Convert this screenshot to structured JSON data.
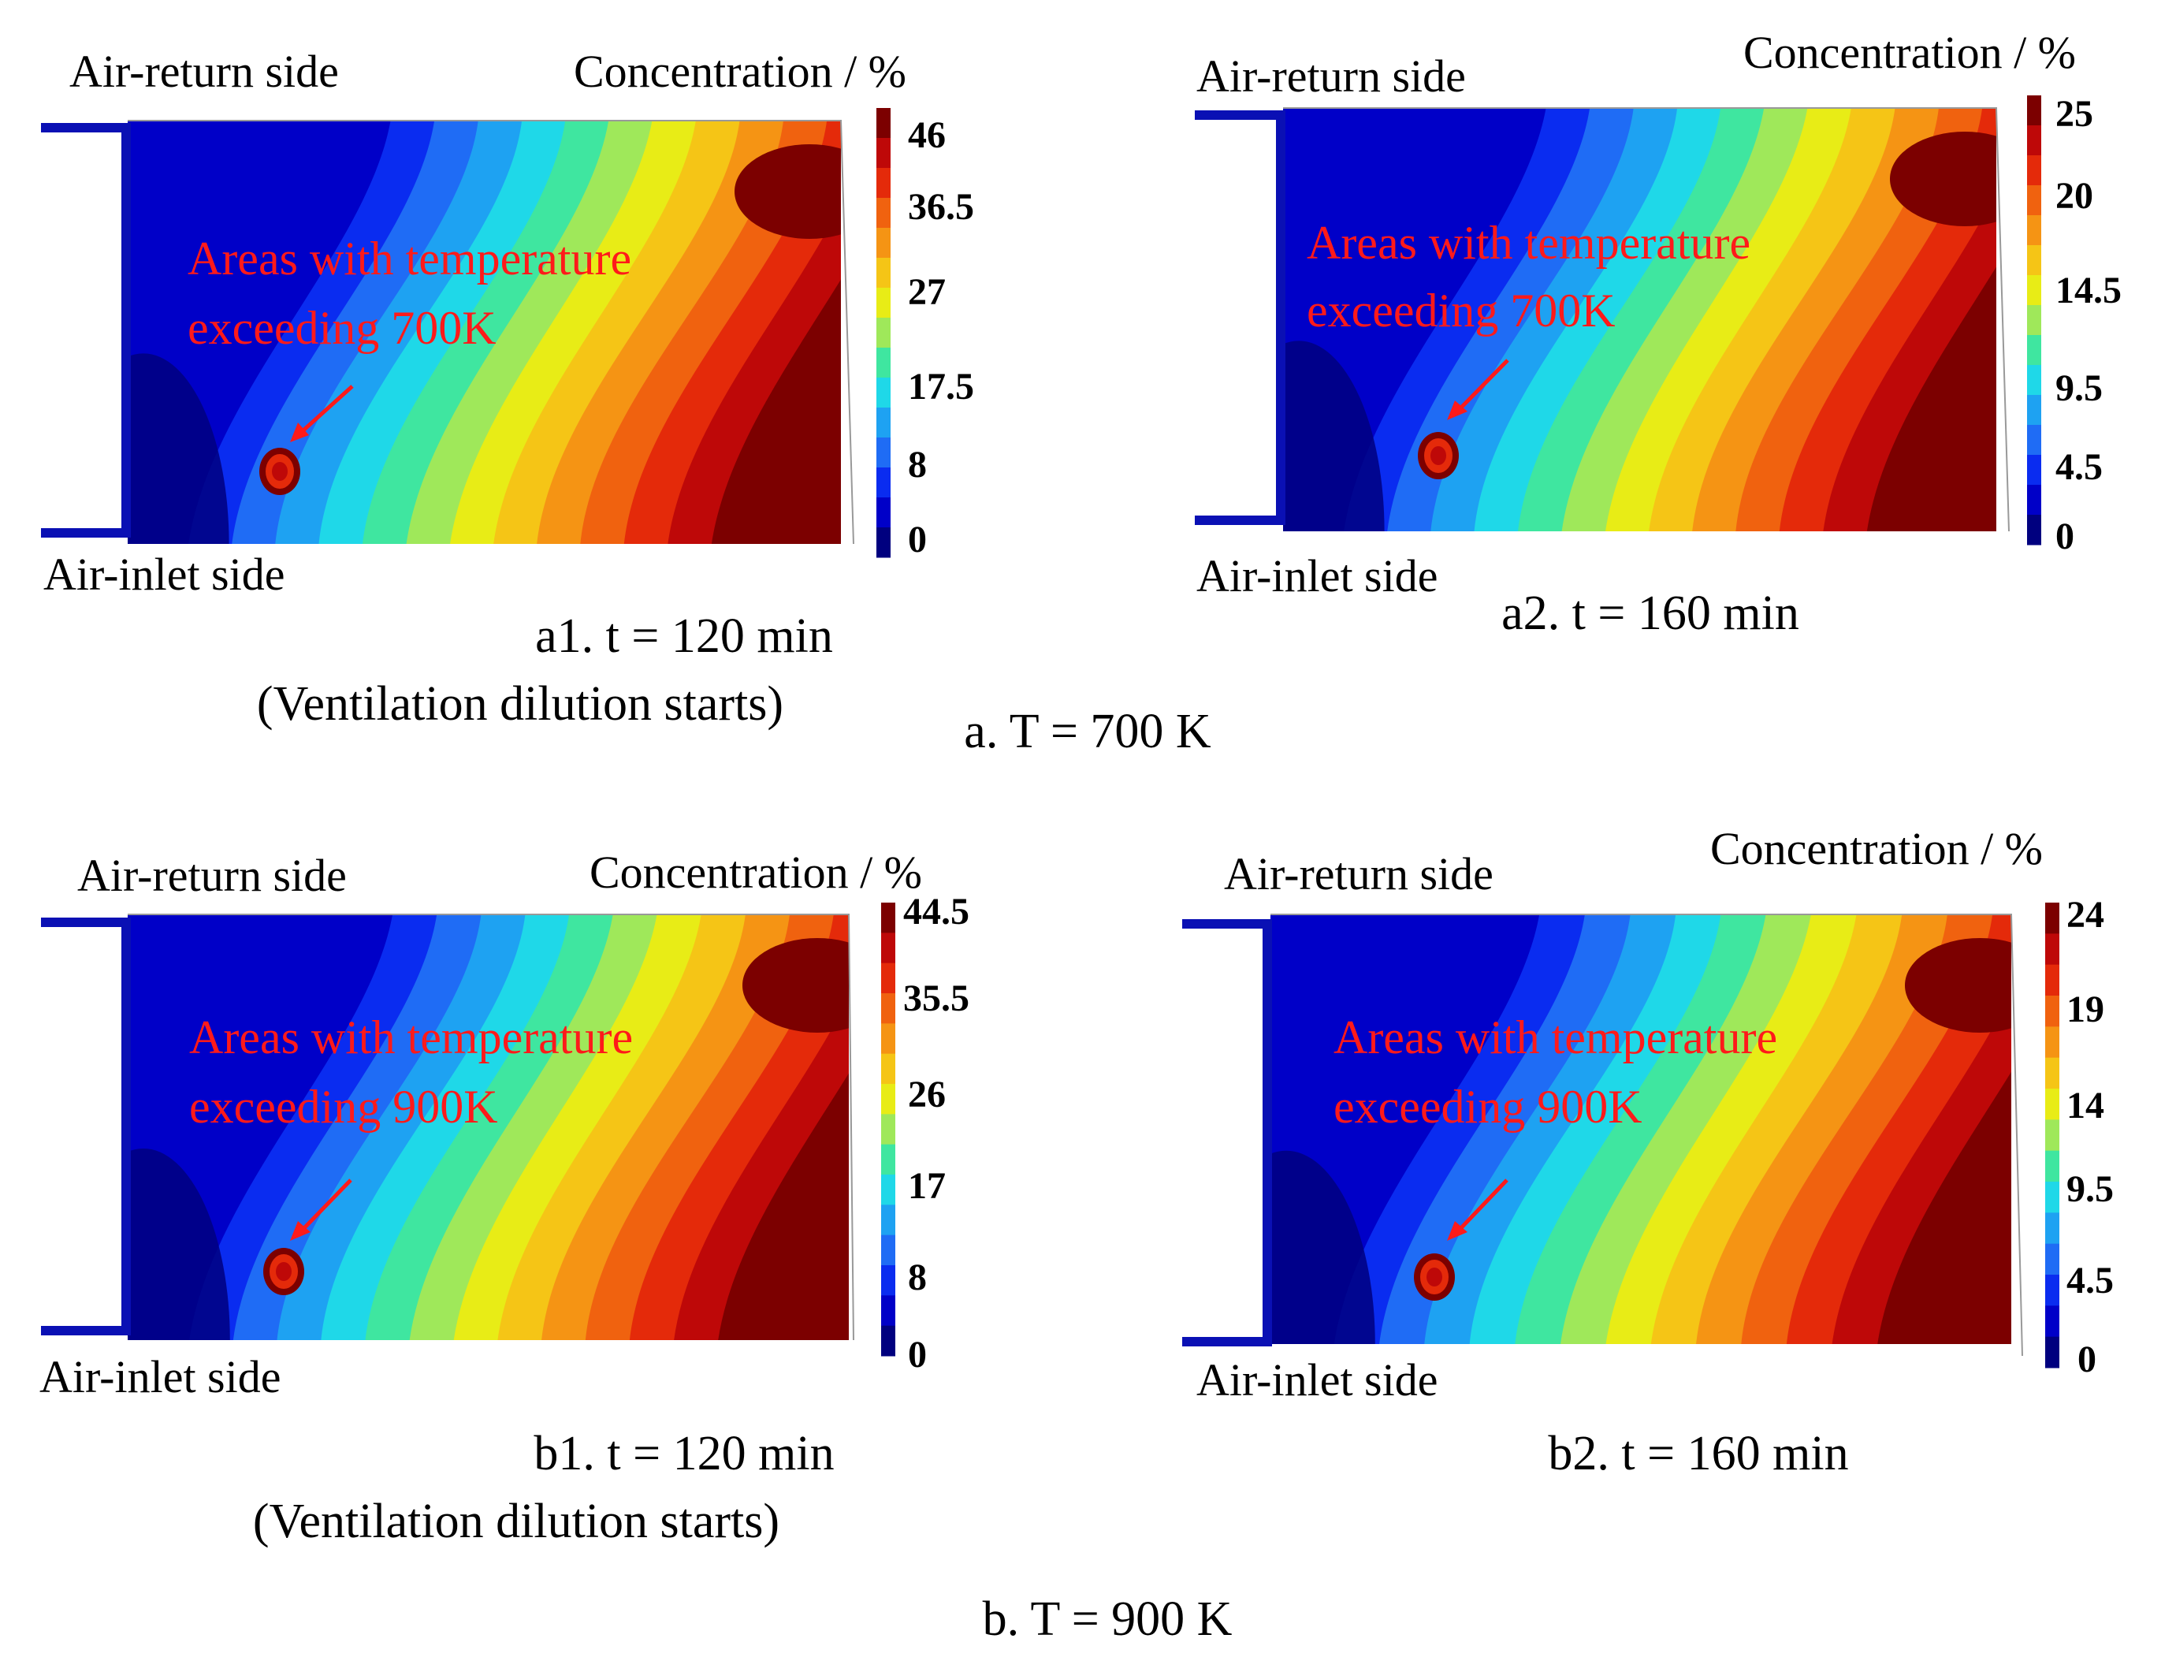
{
  "figure": {
    "group_a_caption": "a. T = 700 K",
    "group_b_caption": "b. T = 900 K"
  },
  "panels": [
    {
      "id": "a1",
      "caption_line1": "a1. t = 120 min",
      "caption_line2": "(Ventilation dilution starts)",
      "return_label": "Air-return side",
      "inlet_label": "Air-inlet side",
      "legend_title": "Concentration / %",
      "annotation_line1": "Areas with temperature",
      "annotation_line2": "exceeding 700K",
      "legend_ticks": [
        "46",
        "36.5",
        "27",
        "17.5",
        "8",
        "0"
      ]
    },
    {
      "id": "a2",
      "caption_line1": "a2. t = 160 min",
      "caption_line2": "",
      "return_label": "Air-return side",
      "inlet_label": "Air-inlet side",
      "legend_title": "Concentration / %",
      "annotation_line1": "Areas with temperature",
      "annotation_line2": "exceeding 700K",
      "legend_ticks": [
        "25",
        "20",
        "14.5",
        "9.5",
        "4.5",
        "0"
      ]
    },
    {
      "id": "b1",
      "caption_line1": "b1. t = 120 min",
      "caption_line2": "(Ventilation dilution starts)",
      "return_label": "Air-return side",
      "inlet_label": "Air-inlet side",
      "legend_title": "Concentration / %",
      "annotation_line1": "Areas with temperature",
      "annotation_line2": "exceeding 900K",
      "legend_ticks": [
        "44.5",
        "35.5",
        "26",
        "17",
        "8",
        "0"
      ]
    },
    {
      "id": "b2",
      "caption_line1": "b2. t = 160 min",
      "caption_line2": "",
      "return_label": "Air-return side",
      "inlet_label": "Air-inlet side",
      "legend_title": "Concentration / %",
      "annotation_line1": "Areas with temperature",
      "annotation_line2": "exceeding 900K",
      "legend_ticks": [
        "24",
        "19",
        "14",
        "9.5",
        "4.5",
        "0"
      ]
    }
  ],
  "colors": {
    "colormap": [
      "#00007f",
      "#0000c8",
      "#0a2cf0",
      "#1f6cf5",
      "#1ea2f2",
      "#1fd8e8",
      "#3fe6a0",
      "#9fe85a",
      "#e8ec16",
      "#f5c516",
      "#f59414",
      "#f0620f",
      "#e42a0a",
      "#be0808",
      "#7c0000"
    ],
    "annotation": "#ff1a1a",
    "duct": "#0a10b4"
  }
}
